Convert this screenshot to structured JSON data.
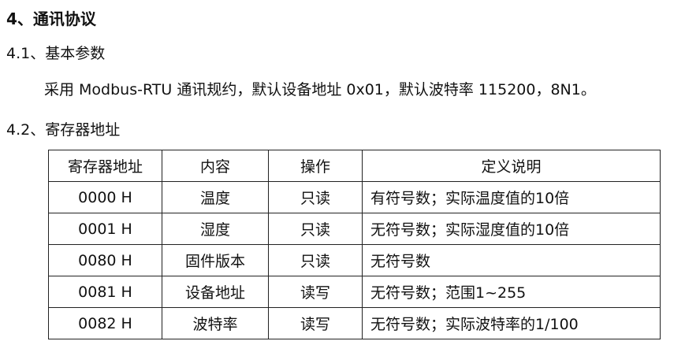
{
  "section_title": "4、通讯协议",
  "subsection_1": "4.1、基本参数",
  "paragraph": "采用 Modbus-RTU  通讯规约，默认设备地址 0x01，默认波特率 115200，8N1。",
  "subsection_2": "4.2、寄存器地址",
  "table": {
    "headers": [
      "寄存器地址",
      "内容",
      "操作",
      "定义说明"
    ],
    "rows": [
      [
        "0000 H",
        "温度",
        "只读",
        "有符号数；实际温度值的10倍"
      ],
      [
        "0001 H",
        "湿度",
        "只读",
        "无符号数；实际湿度值的10倍"
      ],
      [
        "0080 H",
        "固件版本",
        "只读",
        "无符号数"
      ],
      [
        "0081 H",
        "设备地址",
        "读写",
        "无符号数；范围1~255"
      ],
      [
        "0082 H",
        "波特率",
        "读写",
        "无符号数；实际波特率的1/100"
      ]
    ]
  }
}
